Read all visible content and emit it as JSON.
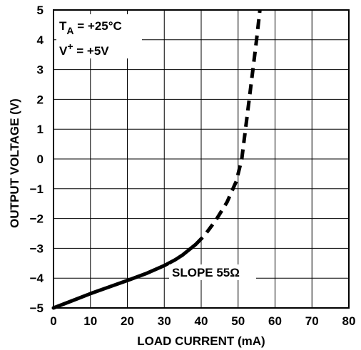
{
  "chart_data": {
    "type": "line",
    "title": "",
    "xlabel": "LOAD CURRENT (mA)",
    "ylabel": "OUTPUT VOLTAGE (V)",
    "xlim": [
      0,
      80
    ],
    "ylim": [
      -5,
      5
    ],
    "x_ticks": [
      "0",
      "10",
      "20",
      "30",
      "40",
      "50",
      "60",
      "70",
      "80"
    ],
    "y_ticks": [
      "5",
      "4",
      "3",
      "2",
      "1",
      "0",
      "−1",
      "−2",
      "−3",
      "−4",
      "−5"
    ],
    "grid": true,
    "legend": "none",
    "annotations": {
      "ta_main": "T",
      "ta_sub": "A",
      "ta_value": " = +25°C",
      "v_main": "V",
      "v_sup": "+",
      "v_value": " = +5V",
      "slope": "SLOPE 55Ω"
    },
    "series": [
      {
        "style": "solid",
        "color": "#000000",
        "x": [
          0,
          5,
          10,
          15,
          20,
          25,
          30,
          33,
          35,
          37,
          38.5
        ],
        "y": [
          -5.0,
          -4.76,
          -4.52,
          -4.3,
          -4.08,
          -3.85,
          -3.58,
          -3.38,
          -3.22,
          -3.02,
          -2.87
        ]
      },
      {
        "style": "dashed",
        "color": "#000000",
        "x": [
          38.5,
          41,
          44,
          47,
          49.5,
          51,
          52,
          53,
          54,
          55,
          55.9
        ],
        "y": [
          -2.87,
          -2.55,
          -2.05,
          -1.45,
          -0.75,
          0.0,
          1.0,
          2.0,
          3.0,
          4.0,
          5.0
        ]
      }
    ]
  }
}
